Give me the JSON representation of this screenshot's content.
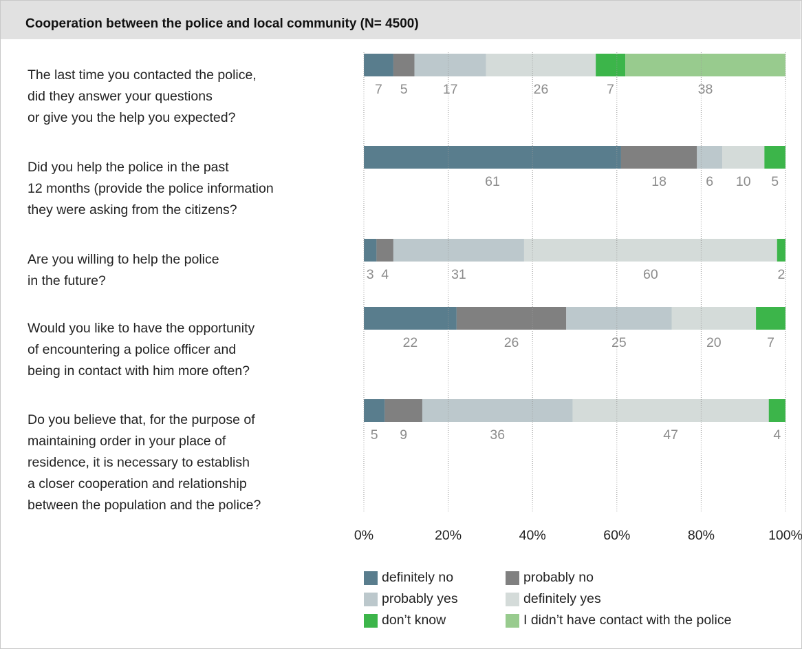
{
  "title": "Cooperation between the police and local community (N= 4500)",
  "questions": [
    {
      "lines": [
        "The last time you contacted the police,",
        "did they answer your questions",
        "or give you the help you expected?"
      ]
    },
    {
      "lines": [
        "Did you help the police in the past",
        "12 months (provide the police information",
        "they were asking from the citizens?"
      ]
    },
    {
      "lines": [
        "Are you willing to help the police",
        "in the future?"
      ]
    },
    {
      "lines": [
        "Would you like to have the opportunity",
        "of encountering a police officer and",
        "being in contact with him more often?"
      ]
    },
    {
      "lines": [
        "Do you believe that, for the purpose of",
        "maintaining order in your place of",
        "residence, it is necessary to establish",
        "a closer cooperation and relationship",
        "between the population and the police?"
      ]
    }
  ],
  "legend": {
    "rows": [
      [
        {
          "label": "definitely no",
          "color": "#597d8d"
        },
        {
          "label": "probably no",
          "color": "#808080"
        }
      ],
      [
        {
          "label": "probably yes",
          "color": "#bcc8cc"
        },
        {
          "label": "definitely yes",
          "color": "#d4dbd9"
        }
      ],
      [
        {
          "label": "don’t know",
          "color": "#3cb54a"
        },
        {
          "label": "I didn’t have contact with the police",
          "color": "#98cb8e"
        }
      ]
    ]
  },
  "chart_data": {
    "type": "bar",
    "orientation": "horizontal",
    "stacked": true,
    "normalized": true,
    "xlim": [
      0,
      100
    ],
    "x_tick_labels": [
      "0%",
      "20%",
      "40%",
      "60%",
      "80%",
      "100%"
    ],
    "grid": "vertical dotted",
    "categories": [
      "The last time you contacted the police, did they answer your questions or give you the help you expected?",
      "Did you help the police in the past 12 months (provide the police information they were asking from the citizens?",
      "Are you willing to help the police in the future?",
      "Would you like to have the opportunity of encountering a police officer and being in contact with him more often?",
      "Do you believe that, for the purpose of maintaining order in your place of residence, it is necessary to establish a closer cooperation and relationship between the population and the police?"
    ],
    "series": [
      {
        "name": "definitely no",
        "color": "#597d8d",
        "values": [
          7,
          61,
          3,
          22,
          5
        ]
      },
      {
        "name": "probably no",
        "color": "#808080",
        "values": [
          5,
          18,
          4,
          26,
          9
        ]
      },
      {
        "name": "probably yes",
        "color": "#bcc8cc",
        "values": [
          17,
          6,
          31,
          25,
          36
        ]
      },
      {
        "name": "definitely yes",
        "color": "#d4dbd9",
        "values": [
          26,
          10,
          60,
          20,
          47
        ]
      },
      {
        "name": "don’t know",
        "color": "#3cb54a",
        "values": [
          7,
          5,
          2,
          7,
          4
        ]
      },
      {
        "name": "I didn’t have contact with the police",
        "color": "#98cb8e",
        "values": [
          38,
          null,
          null,
          null,
          null
        ]
      }
    ],
    "legend_position": "bottom"
  }
}
